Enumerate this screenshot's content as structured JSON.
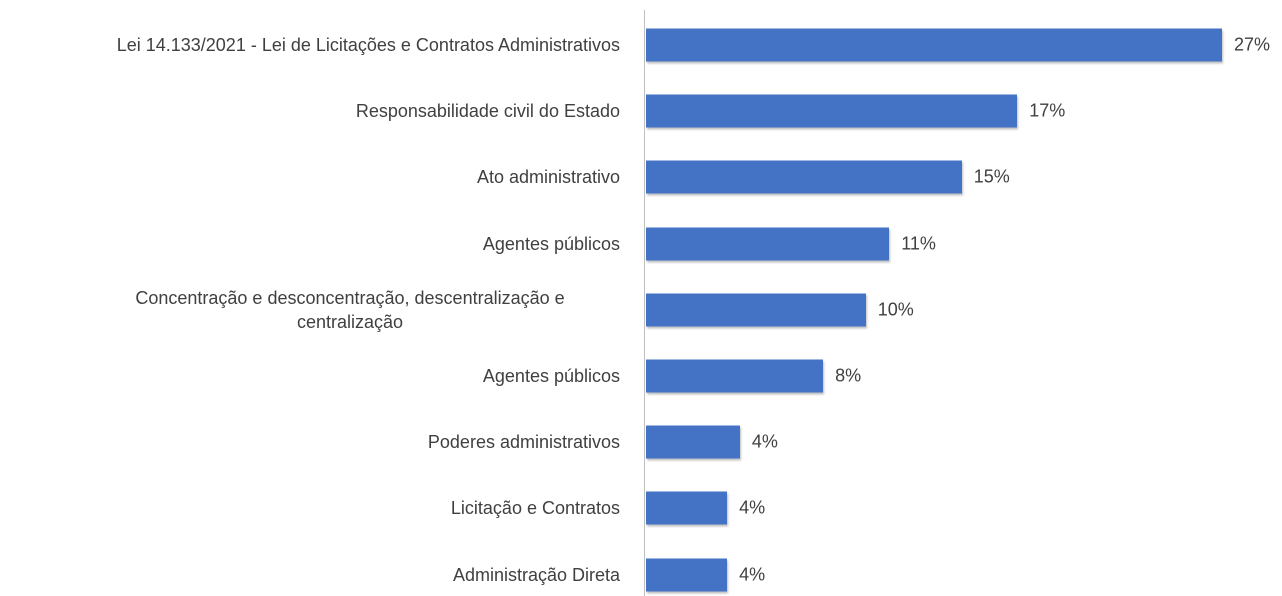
{
  "chart_data": {
    "type": "bar",
    "orientation": "horizontal",
    "categories": [
      "Lei 14.133/2021 - Lei de Licitações e Contratos Administrativos",
      "Responsabilidade civil do Estado",
      "Ato administrativo",
      "Agentes públicos",
      "Concentração e desconcentração, descentralização e centralização",
      "Agentes públicos",
      "Poderes administrativos",
      "Licitação e Contratos",
      "Administração Direta"
    ],
    "values": [
      27,
      17.4,
      14.8,
      11.4,
      10.3,
      8.3,
      4.4,
      3.8,
      3.8
    ],
    "value_labels": [
      "27%",
      "17%",
      "15%",
      "11%",
      "10%",
      "8%",
      "4%",
      "4%",
      "4%"
    ],
    "color": "#4472c4"
  }
}
